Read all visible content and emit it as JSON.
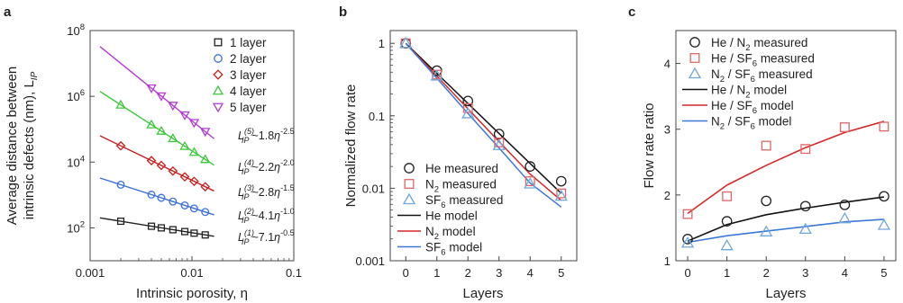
{
  "panels": {
    "a": {
      "label": "a"
    },
    "b": {
      "label": "b"
    },
    "c": {
      "label": "c"
    }
  },
  "chart_data": [
    {
      "panel": "a",
      "type": "scatter",
      "xlabel": "Intrinsic porosity, η",
      "ylabel_line1": "Average distance between",
      "ylabel_line2": "intrinsic defects (nm), L",
      "ylabel_sub": "IP",
      "xscale": "log",
      "yscale": "log",
      "xlim": [
        0.001,
        0.1
      ],
      "ylim": [
        10,
        100000000
      ],
      "xticks": [
        {
          "v": 0.001,
          "t": "0.001"
        },
        {
          "v": 0.01,
          "t": "0.01"
        },
        {
          "v": 0.1,
          "t": "0.1"
        }
      ],
      "yticks": [
        {
          "v": 100,
          "b": "10",
          "e": "2"
        },
        {
          "v": 10000,
          "b": "10",
          "e": "4"
        },
        {
          "v": 1000000,
          "b": "10",
          "e": "6"
        },
        {
          "v": 100000000,
          "b": "10",
          "e": "8"
        }
      ],
      "legend_position": "top-right",
      "series": [
        {
          "name": "1 layer",
          "color": "#222222",
          "marker": "square",
          "coef": 7.1,
          "exp": -0.5,
          "xfit": [
            0.00125,
            0.0165
          ],
          "x": [
            0.002,
            0.004,
            0.005,
            0.0065,
            0.0085,
            0.0105,
            0.0135
          ],
          "y": [
            159,
            112,
            100,
            88,
            77,
            69,
            61
          ]
        },
        {
          "name": "2 layer",
          "color": "#3a6fd8",
          "marker": "circle",
          "coef": 4.1,
          "exp": -1.0,
          "xfit": [
            0.00125,
            0.0165
          ],
          "x": [
            0.002,
            0.004,
            0.005,
            0.0065,
            0.0085,
            0.0105,
            0.0135
          ],
          "y": [
            2050,
            1025,
            820,
            631,
            482,
            390,
            304
          ]
        },
        {
          "name": "3 layer",
          "color": "#c81e1e",
          "marker": "diamond",
          "coef": 2.8,
          "exp": -1.5,
          "xfit": [
            0.00125,
            0.0165
          ],
          "x": [
            0.002,
            0.004,
            0.005,
            0.0065,
            0.0085,
            0.0105,
            0.0135
          ],
          "y": [
            31300,
            11100,
            7920,
            5340,
            3570,
            2600,
            1780
          ]
        },
        {
          "name": "4 layer",
          "color": "#3cc83c",
          "marker": "triangle-up",
          "coef": 2.2,
          "exp": -2.0,
          "xfit": [
            0.00125,
            0.0165
          ],
          "x": [
            0.002,
            0.004,
            0.005,
            0.0065,
            0.0085,
            0.0105,
            0.0135
          ],
          "y": [
            550000,
            137500,
            88000,
            52100,
            30400,
            20000,
            12100
          ]
        },
        {
          "name": "5 layer",
          "color": "#b43cd2",
          "marker": "triangle-down",
          "coef": 1.8,
          "exp": -2.5,
          "xfit": [
            0.00125,
            0.0165
          ],
          "x": [
            0.004,
            0.005,
            0.0065,
            0.0085,
            0.0105,
            0.0135
          ],
          "y": [
            1780000,
            1020000,
            528000,
            270000,
            158000,
            85000
          ]
        }
      ],
      "annotations": [
        {
          "sup": "(5)",
          "coef": "~1.8",
          "exp": "-2.5"
        },
        {
          "sup": "(4)",
          "coef": "~2.2",
          "exp": "-2.0"
        },
        {
          "sup": "(3)",
          "coef": "~2.8",
          "exp": "-1.5"
        },
        {
          "sup": "(2)",
          "coef": "~4.1",
          "exp": "-1.0"
        },
        {
          "sup": "(1)",
          "coef": "~7.1",
          "exp": "-0.5"
        }
      ],
      "annotation_symbol": "L",
      "annotation_sub": "IP",
      "annotation_var": "η"
    },
    {
      "panel": "b",
      "type": "line",
      "xlabel": "Layers",
      "ylabel": "Normalized flow rate",
      "yscale": "log",
      "xlim": [
        -0.5,
        5.5
      ],
      "ylim": [
        0.001,
        1.5
      ],
      "categories": [
        0,
        1,
        2,
        3,
        4,
        5
      ],
      "xticks": [
        {
          "v": 0,
          "t": "0"
        },
        {
          "v": 1,
          "t": "1"
        },
        {
          "v": 2,
          "t": "2"
        },
        {
          "v": 3,
          "t": "3"
        },
        {
          "v": 4,
          "t": "4"
        },
        {
          "v": 5,
          "t": "5"
        }
      ],
      "yticks": [
        {
          "v": 0.001,
          "t": "0.001"
        },
        {
          "v": 0.01,
          "t": "0.01"
        },
        {
          "v": 0.1,
          "t": "0.1"
        },
        {
          "v": 1,
          "t": "1"
        }
      ],
      "legend_position": "bottom-left",
      "series": [
        {
          "name": "He measured",
          "kind": "measured",
          "color": "#222222",
          "marker": "circle",
          "values": [
            1.0,
            0.42,
            0.16,
            0.056,
            0.02,
            0.0125
          ]
        },
        {
          "name": "N2 measured",
          "kind": "measured",
          "color": "#e06666",
          "marker": "square",
          "values": [
            1.0,
            0.37,
            0.128,
            0.043,
            0.0125,
            0.0085
          ]
        },
        {
          "name": "SF6 measured",
          "kind": "measured",
          "color": "#6fa8dc",
          "marker": "triangle-up",
          "values": [
            1.0,
            0.355,
            0.107,
            0.039,
            0.0115,
            0.0078
          ]
        },
        {
          "name": "He model",
          "kind": "model",
          "color": "#111111",
          "values": [
            1.0,
            0.385,
            0.148,
            0.057,
            0.022,
            0.0085
          ]
        },
        {
          "name": "N2 model",
          "kind": "model",
          "color": "#d62728",
          "values": [
            1.0,
            0.354,
            0.125,
            0.044,
            0.0157,
            0.0068
          ]
        },
        {
          "name": "SF6 model",
          "kind": "model",
          "color": "#3c78d8",
          "values": [
            1.0,
            0.33,
            0.108,
            0.036,
            0.0118,
            0.0055
          ]
        }
      ],
      "legend": [
        {
          "a": "He measured"
        },
        {
          "a": "N",
          "sub": "2",
          "b": " measured"
        },
        {
          "a": "SF",
          "sub": "6",
          "b": " measured"
        },
        {
          "a": "He model"
        },
        {
          "a": "N",
          "sub": "2",
          "b": " model"
        },
        {
          "a": "SF",
          "sub": "6",
          "b": " model"
        }
      ]
    },
    {
      "panel": "c",
      "type": "line",
      "xlabel": "Layers",
      "ylabel": "Flow rate ratio",
      "xlim": [
        -0.3,
        5.3
      ],
      "ylim": [
        1,
        4.5
      ],
      "categories": [
        0,
        1,
        2,
        3,
        4,
        5
      ],
      "xticks": [
        {
          "v": 0,
          "t": "0"
        },
        {
          "v": 1,
          "t": "1"
        },
        {
          "v": 2,
          "t": "2"
        },
        {
          "v": 3,
          "t": "3"
        },
        {
          "v": 4,
          "t": "4"
        },
        {
          "v": 5,
          "t": "5"
        }
      ],
      "yticks": [
        {
          "v": 1,
          "t": "1"
        },
        {
          "v": 2,
          "t": "2"
        },
        {
          "v": 3,
          "t": "3"
        },
        {
          "v": 4,
          "t": "4"
        }
      ],
      "legend_position": "top-left",
      "series": [
        {
          "name": "He / N2 measured",
          "kind": "measured",
          "color": "#222222",
          "marker": "circle",
          "values": [
            1.33,
            1.6,
            1.91,
            1.83,
            1.85,
            1.98
          ]
        },
        {
          "name": "He / SF6 measured",
          "kind": "measured",
          "color": "#e06666",
          "marker": "square",
          "values": [
            1.71,
            1.98,
            2.75,
            2.7,
            3.03,
            3.04
          ]
        },
        {
          "name": "N2 / SF6 measured",
          "kind": "measured",
          "color": "#6fa8dc",
          "marker": "triangle-up",
          "values": [
            1.27,
            1.23,
            1.44,
            1.48,
            1.64,
            1.54
          ]
        },
        {
          "name": "He / N2 model",
          "kind": "model",
          "color": "#111111",
          "values": [
            1.3,
            1.55,
            1.7,
            1.8,
            1.89,
            1.97
          ]
        },
        {
          "name": "He / SF6 model",
          "kind": "model",
          "color": "#d62728",
          "values": [
            1.72,
            2.15,
            2.45,
            2.72,
            2.95,
            3.12
          ]
        },
        {
          "name": "N2 / SF6 model",
          "kind": "model",
          "color": "#3c78d8",
          "values": [
            1.28,
            1.38,
            1.45,
            1.52,
            1.59,
            1.63
          ]
        }
      ],
      "legend": [
        {
          "a": "He / N",
          "sub": "2",
          "b": " measured"
        },
        {
          "a": "He / SF",
          "sub": "6",
          "b": " measured"
        },
        {
          "a": "N",
          "sub": "2",
          "b": " / SF",
          "sub2": "6",
          "c": " measured"
        },
        {
          "a": "He / N",
          "sub": "2",
          "b": " model"
        },
        {
          "a": "He / SF",
          "sub": "6",
          "b": " model"
        },
        {
          "a": "N",
          "sub": "2",
          "b": " / SF",
          "sub2": "6",
          "c": " model"
        }
      ]
    }
  ]
}
